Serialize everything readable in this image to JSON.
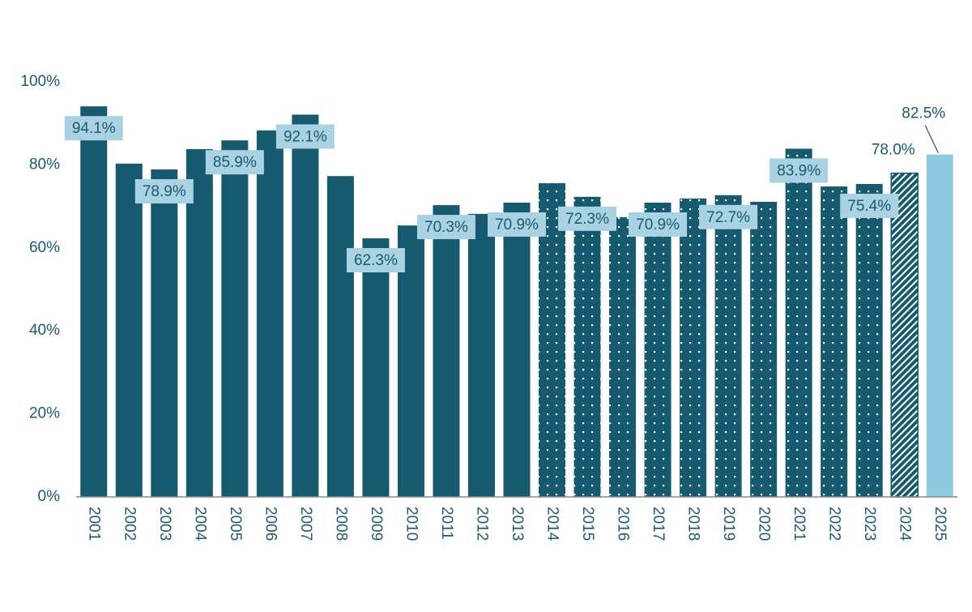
{
  "chart_data": {
    "type": "bar",
    "categories": [
      "2001",
      "2002",
      "2003",
      "2004",
      "2005",
      "2006",
      "2007",
      "2008",
      "2009",
      "2010",
      "2011",
      "2012",
      "2013",
      "2014",
      "2015",
      "2016",
      "2017",
      "2018",
      "2019",
      "2020",
      "2021",
      "2022",
      "2023",
      "2024",
      "2025"
    ],
    "values": [
      94.1,
      80.3,
      78.9,
      83.8,
      85.9,
      88.3,
      92.1,
      77.3,
      62.3,
      65.4,
      70.3,
      68.2,
      70.9,
      75.6,
      72.3,
      67.4,
      70.9,
      71.9,
      72.7,
      71.1,
      83.9,
      74.8,
      75.4,
      78.0,
      82.5
    ],
    "value_labels": [
      "94.1%",
      null,
      "78.9%",
      null,
      "85.9%",
      null,
      "92.1%",
      null,
      "62.3%",
      null,
      "70.3%",
      null,
      "70.9%",
      null,
      "72.3%",
      null,
      "70.9%",
      null,
      "72.7%",
      null,
      "83.9%",
      null,
      "75.4%",
      "78.0%",
      "82.5%"
    ],
    "colors": [
      "#165a70",
      "#165a70",
      "#165a70",
      "#165a70",
      "#165a70",
      "#165a70",
      "#165a70",
      "#165a70",
      "#165a70",
      "#165a70",
      "#165a70",
      "#165a70",
      "#165a70",
      "#165a70",
      "#165a70",
      "#165a70",
      "#165a70",
      "#165a70",
      "#165a70",
      "#165a70",
      "#165a70",
      "#165a70",
      "#165a70",
      "#165a70",
      "#8ecae0"
    ],
    "patterns": [
      "solid",
      "solid",
      "solid",
      "solid",
      "solid",
      "solid",
      "solid",
      "solid",
      "solid",
      "solid",
      "solid",
      "solid",
      "solid",
      "dots",
      "dots",
      "dots",
      "dots",
      "dots",
      "dots",
      "dots",
      "dots",
      "dots",
      "dots",
      "hatch",
      "solid"
    ],
    "ylim": [
      0,
      100
    ],
    "yticks": [
      {
        "value": 0,
        "label": "0%"
      },
      {
        "value": 20,
        "label": "20%"
      },
      {
        "value": 40,
        "label": "40%"
      },
      {
        "value": 60,
        "label": "60%"
      },
      {
        "value": 80,
        "label": "80%"
      },
      {
        "value": 100,
        "label": "100%"
      }
    ],
    "grid": false
  }
}
